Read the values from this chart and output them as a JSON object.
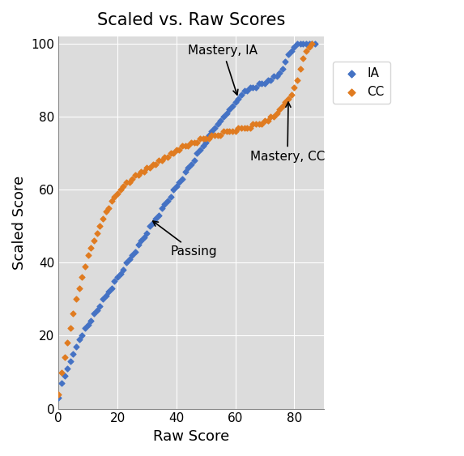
{
  "title": "Scaled vs. Raw Scores",
  "xlabel": "Raw Score",
  "ylabel": "Scaled Score",
  "background_color": "#dcdcdc",
  "figure_background": "#ffffff",
  "ia_color": "#4472c4",
  "cc_color": "#e07b20",
  "ia_label": "IA",
  "cc_label": "CC",
  "annotation_passing": "Passing",
  "annotation_mastery_ia": "Mastery, IA",
  "annotation_mastery_cc": "Mastery, CC",
  "ia_raw": [
    0,
    1,
    2,
    3,
    4,
    5,
    6,
    7,
    8,
    9,
    10,
    11,
    12,
    13,
    14,
    15,
    16,
    17,
    18,
    19,
    20,
    21,
    22,
    23,
    24,
    25,
    26,
    27,
    28,
    29,
    30,
    31,
    32,
    33,
    34,
    35,
    36,
    37,
    38,
    39,
    40,
    41,
    42,
    43,
    44,
    45,
    46,
    47,
    48,
    49,
    50,
    51,
    52,
    53,
    54,
    55,
    56,
    57,
    58,
    59,
    60,
    61,
    62,
    63,
    64,
    65,
    66,
    67,
    68,
    69,
    70,
    71,
    72,
    73,
    74,
    75,
    76,
    77,
    78,
    79,
    80,
    81,
    82,
    83,
    84,
    85,
    86,
    87
  ],
  "ia_scaled": [
    3,
    7,
    9,
    11,
    13,
    15,
    17,
    19,
    20,
    22,
    23,
    24,
    26,
    27,
    28,
    30,
    31,
    32,
    33,
    35,
    36,
    37,
    38,
    40,
    41,
    42,
    43,
    45,
    46,
    47,
    48,
    50,
    51,
    52,
    53,
    55,
    56,
    57,
    58,
    60,
    61,
    62,
    63,
    65,
    66,
    67,
    68,
    70,
    71,
    72,
    73,
    75,
    76,
    77,
    78,
    79,
    80,
    81,
    82,
    83,
    84,
    85,
    86,
    87,
    87,
    88,
    88,
    88,
    89,
    89,
    89,
    90,
    90,
    91,
    91,
    92,
    93,
    95,
    97,
    98,
    99,
    100,
    100,
    100,
    100,
    100,
    100,
    100
  ],
  "cc_raw": [
    0,
    1,
    2,
    3,
    4,
    5,
    6,
    7,
    8,
    9,
    10,
    11,
    12,
    13,
    14,
    15,
    16,
    17,
    18,
    19,
    20,
    21,
    22,
    23,
    24,
    25,
    26,
    27,
    28,
    29,
    30,
    31,
    32,
    33,
    34,
    35,
    36,
    37,
    38,
    39,
    40,
    41,
    42,
    43,
    44,
    45,
    46,
    47,
    48,
    49,
    50,
    51,
    52,
    53,
    54,
    55,
    56,
    57,
    58,
    59,
    60,
    61,
    62,
    63,
    64,
    65,
    66,
    67,
    68,
    69,
    70,
    71,
    72,
    73,
    74,
    75,
    76,
    77,
    78,
    79,
    80,
    81,
    82,
    83,
    84,
    85,
    86
  ],
  "cc_scaled": [
    4,
    10,
    14,
    18,
    22,
    26,
    30,
    33,
    36,
    39,
    42,
    44,
    46,
    48,
    50,
    52,
    54,
    55,
    57,
    58,
    59,
    60,
    61,
    62,
    62,
    63,
    64,
    64,
    65,
    65,
    66,
    66,
    67,
    67,
    68,
    68,
    69,
    69,
    70,
    70,
    71,
    71,
    72,
    72,
    72,
    73,
    73,
    73,
    74,
    74,
    74,
    74,
    75,
    75,
    75,
    75,
    76,
    76,
    76,
    76,
    76,
    77,
    77,
    77,
    77,
    77,
    78,
    78,
    78,
    78,
    79,
    79,
    80,
    80,
    81,
    82,
    83,
    84,
    85,
    86,
    88,
    90,
    93,
    96,
    98,
    99,
    100
  ],
  "xlim": [
    0,
    90
  ],
  "ylim": [
    0,
    102
  ],
  "xticks": [
    0,
    20,
    40,
    60,
    80
  ],
  "yticks": [
    0,
    20,
    40,
    60,
    80,
    100
  ]
}
